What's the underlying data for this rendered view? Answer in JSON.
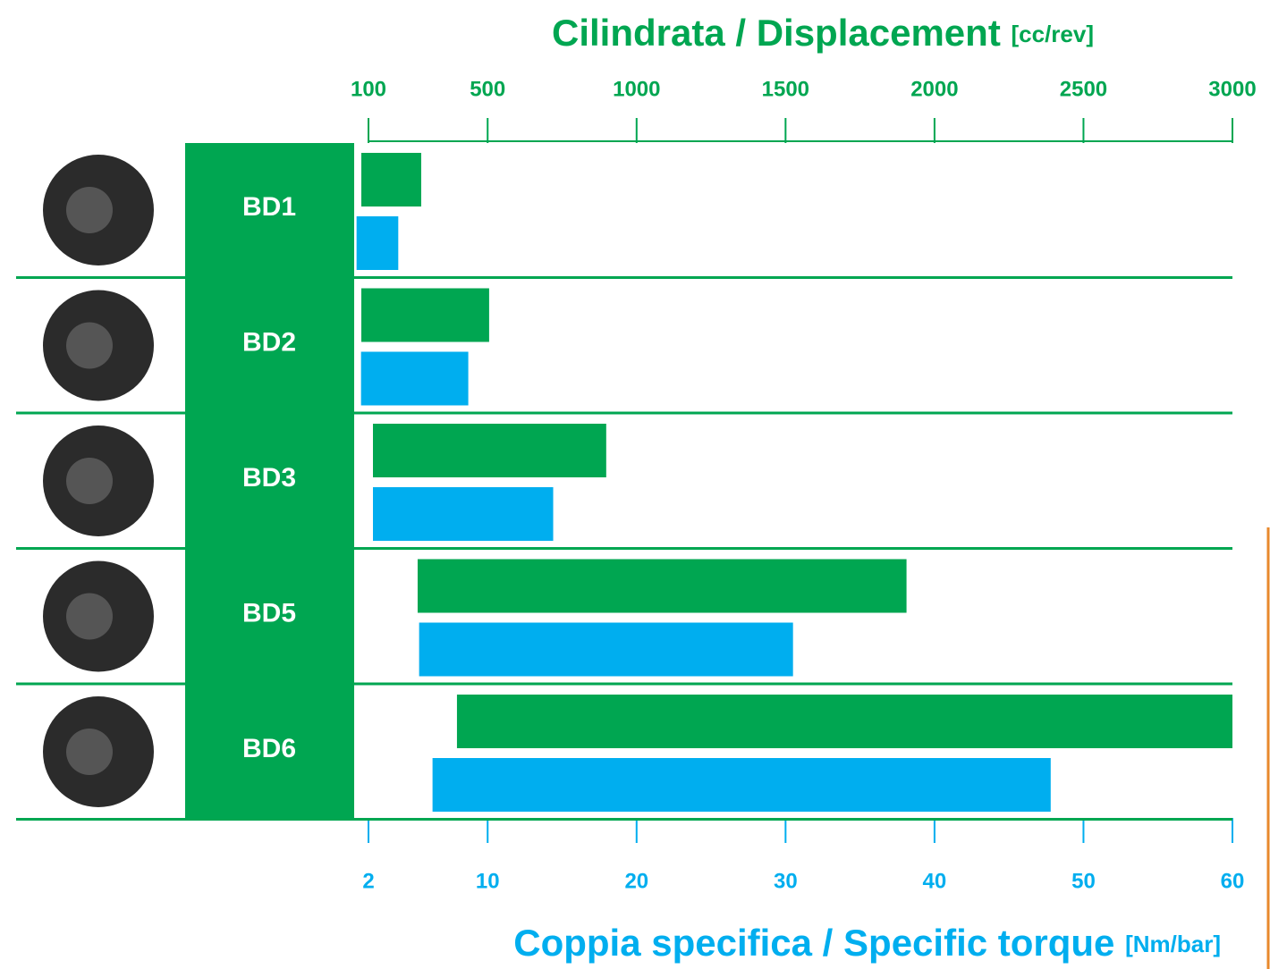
{
  "chart_data": {
    "type": "range-bar",
    "x_title": "Cilindrata / Displacement",
    "x_unit": "[cc/rev]",
    "x2_title": "Coppia specifica / Specific torque",
    "x2_unit": "[Nm/bar]",
    "categories": [
      "BD1",
      "BD2",
      "BD3",
      "BD5",
      "BD6"
    ],
    "xlim": [
      100,
      3000
    ],
    "xticks": [
      100,
      500,
      1000,
      1500,
      2000,
      2500,
      3000
    ],
    "x2lim": [
      2,
      60
    ],
    "x2ticks": [
      2,
      10,
      20,
      30,
      40,
      50,
      60
    ],
    "series": [
      {
        "color": "#00a651",
        "axis": "x",
        "starts": [
          76,
          76,
          115,
          265,
          397
        ],
        "ends": [
          277,
          505,
          898,
          1906,
          3000
        ]
      },
      {
        "color": "#00aeef",
        "axis": "x2",
        "starts": [
          1.2,
          1.5,
          2.3,
          5.4,
          6.3
        ],
        "ends": [
          4.0,
          8.7,
          14.4,
          30.5,
          47.8
        ]
      }
    ]
  }
}
